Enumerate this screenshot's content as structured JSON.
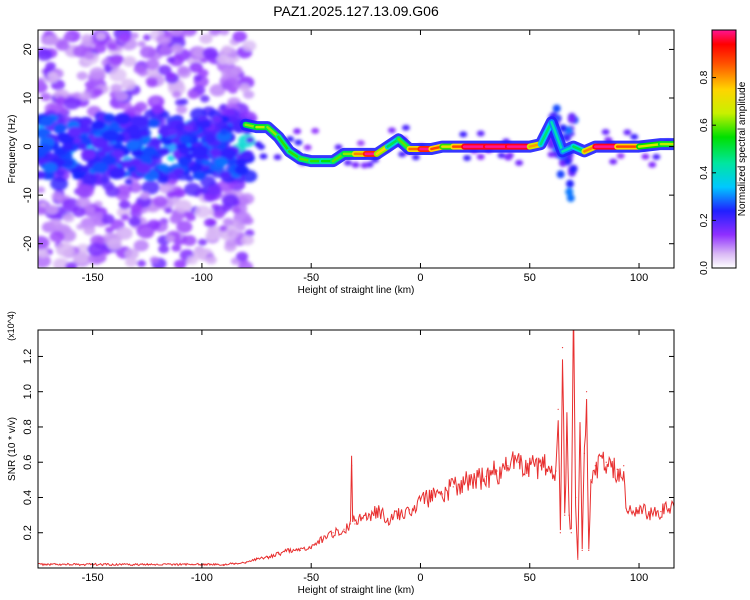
{
  "title": "PAZ1.2025.127.13.09.G06",
  "chart_data": [
    {
      "type": "heatmap",
      "xlabel": "Height of straight line (km)",
      "ylabel": "Frequency (Hz)",
      "xlim": [
        -175,
        116
      ],
      "ylim": [
        -25,
        24
      ],
      "xticks": [
        -150,
        -100,
        -50,
        0,
        50,
        100
      ],
      "yticks": [
        -20,
        -10,
        0,
        10,
        20
      ],
      "colorbar": {
        "label": "Normalized spectral amplitude",
        "range": [
          0.0,
          1.0
        ],
        "ticks": [
          0.0,
          0.2,
          0.4,
          0.6,
          0.8
        ],
        "tick_labels": [
          "0.0",
          "0.2",
          "0.4",
          "0.6",
          "0.8"
        ]
      },
      "ridge": {
        "x": [
          -80,
          -75,
          -70,
          -65,
          -60,
          -55,
          -50,
          -45,
          -40,
          -35,
          -30,
          -25,
          -20,
          -15,
          -10,
          -5,
          0,
          5,
          10,
          15,
          20,
          30,
          40,
          50,
          55,
          60,
          65,
          70,
          75,
          80,
          90,
          100,
          110,
          116
        ],
        "y": [
          4.5,
          4,
          4,
          2,
          -1,
          -2.5,
          -3,
          -3,
          -3,
          -1.5,
          -1.5,
          -1.5,
          -1.5,
          0,
          1.5,
          -0.5,
          -0.5,
          -0.5,
          0,
          0,
          0,
          0,
          0,
          0,
          0.5,
          5,
          -1,
          0,
          -1,
          0,
          0,
          0,
          0.5,
          0.5
        ],
        "amplitude": [
          0.5,
          0.5,
          0.55,
          0.45,
          0.45,
          0.45,
          0.5,
          0.4,
          0.45,
          0.5,
          0.5,
          0.9,
          0.9,
          0.35,
          0.4,
          0.55,
          0.9,
          0.9,
          0.6,
          0.55,
          0.95,
          0.95,
          0.95,
          0.95,
          0.4,
          0.3,
          0.3,
          0.3,
          0.45,
          0.95,
          0.95,
          0.55,
          0.55,
          0.5
        ]
      }
    },
    {
      "type": "line",
      "xlabel": "Height of straight line (km)",
      "ylabel": "SNR (10 * v/v)",
      "y_multiplier": "(x10^4)",
      "xlim": [
        -175,
        116
      ],
      "ylim": [
        0,
        1.35
      ],
      "xticks": [
        -150,
        -100,
        -50,
        0,
        50,
        100
      ],
      "yticks": [
        0.2,
        0.4,
        0.6,
        0.8,
        1.0,
        1.2
      ],
      "ytick_labels": [
        "0.2",
        "0.4",
        "0.6",
        "0.8",
        "1.0",
        "1.2"
      ],
      "color": "#e83030",
      "series": [
        {
          "x": [
            -175,
            -150,
            -125,
            -100,
            -90,
            -85,
            -80,
            -75,
            -70,
            -65,
            -60,
            -55,
            -50,
            -45,
            -40,
            -35,
            -32,
            -31.5,
            -31,
            -30,
            -25,
            -20,
            -15,
            -10,
            -5,
            0,
            5,
            10,
            15,
            20,
            25,
            30,
            35,
            40,
            45,
            50,
            55,
            60,
            62,
            63,
            64,
            65,
            66,
            67,
            68,
            69,
            70,
            71,
            72,
            73,
            74,
            75,
            76,
            77,
            78,
            80,
            85,
            90,
            93,
            94,
            95,
            100,
            105,
            110,
            116
          ],
          "y": [
            0.02,
            0.02,
            0.02,
            0.02,
            0.02,
            0.025,
            0.03,
            0.05,
            0.06,
            0.08,
            0.1,
            0.1,
            0.12,
            0.16,
            0.2,
            0.22,
            0.25,
            0.58,
            0.3,
            0.25,
            0.3,
            0.32,
            0.28,
            0.3,
            0.33,
            0.38,
            0.4,
            0.42,
            0.46,
            0.48,
            0.5,
            0.52,
            0.55,
            0.58,
            0.6,
            0.6,
            0.58,
            0.55,
            0.55,
            0.9,
            0.2,
            1.25,
            0.3,
            0.8,
            0.3,
            0.2,
            1.35,
            0.4,
            0.05,
            0.8,
            0.1,
            0.65,
            1.0,
            0.1,
            0.5,
            0.58,
            0.6,
            0.56,
            0.58,
            0.34,
            0.32,
            0.34,
            0.3,
            0.32,
            0.35
          ]
        }
      ]
    }
  ]
}
